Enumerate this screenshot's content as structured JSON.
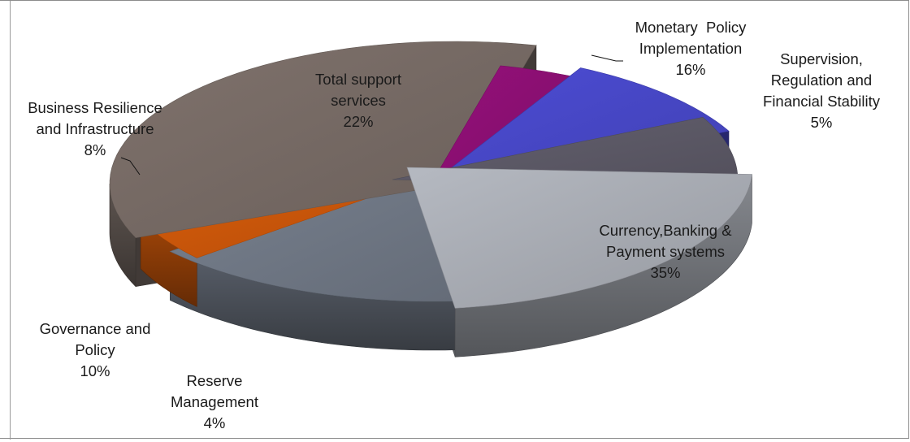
{
  "chart_data": {
    "type": "pie",
    "style": "3d-exploded",
    "legend": "none",
    "slices": [
      {
        "key": "monetary",
        "label_lines": [
          "Monetary  Policy",
          "Implementation",
          "16%"
        ],
        "value": 16,
        "color": "#6f7784"
      },
      {
        "key": "supervision",
        "label_lines": [
          "Supervision,",
          "Regulation and",
          "Financial Stability",
          "5%"
        ],
        "value": 5,
        "color": "#c9560a"
      },
      {
        "key": "currency",
        "label_lines": [
          "Currency,Banking &",
          "Payment systems",
          "35%"
        ],
        "value": 35,
        "color": "#766a64"
      },
      {
        "key": "reserve",
        "label_lines": [
          "Reserve",
          "Management",
          "4%"
        ],
        "value": 4,
        "color": "#8b0f72"
      },
      {
        "key": "governance",
        "label_lines": [
          "Governance and",
          "Policy",
          "10%"
        ],
        "value": 10,
        "color": "#4747c6"
      },
      {
        "key": "business",
        "label_lines": [
          "Business Resilience",
          "and Infrastructure",
          "8%"
        ],
        "value": 8,
        "color": "#5c5966"
      },
      {
        "key": "support",
        "label_lines": [
          "Total support",
          "services",
          "22%"
        ],
        "value": 22,
        "color": "#a8abb3"
      }
    ]
  }
}
